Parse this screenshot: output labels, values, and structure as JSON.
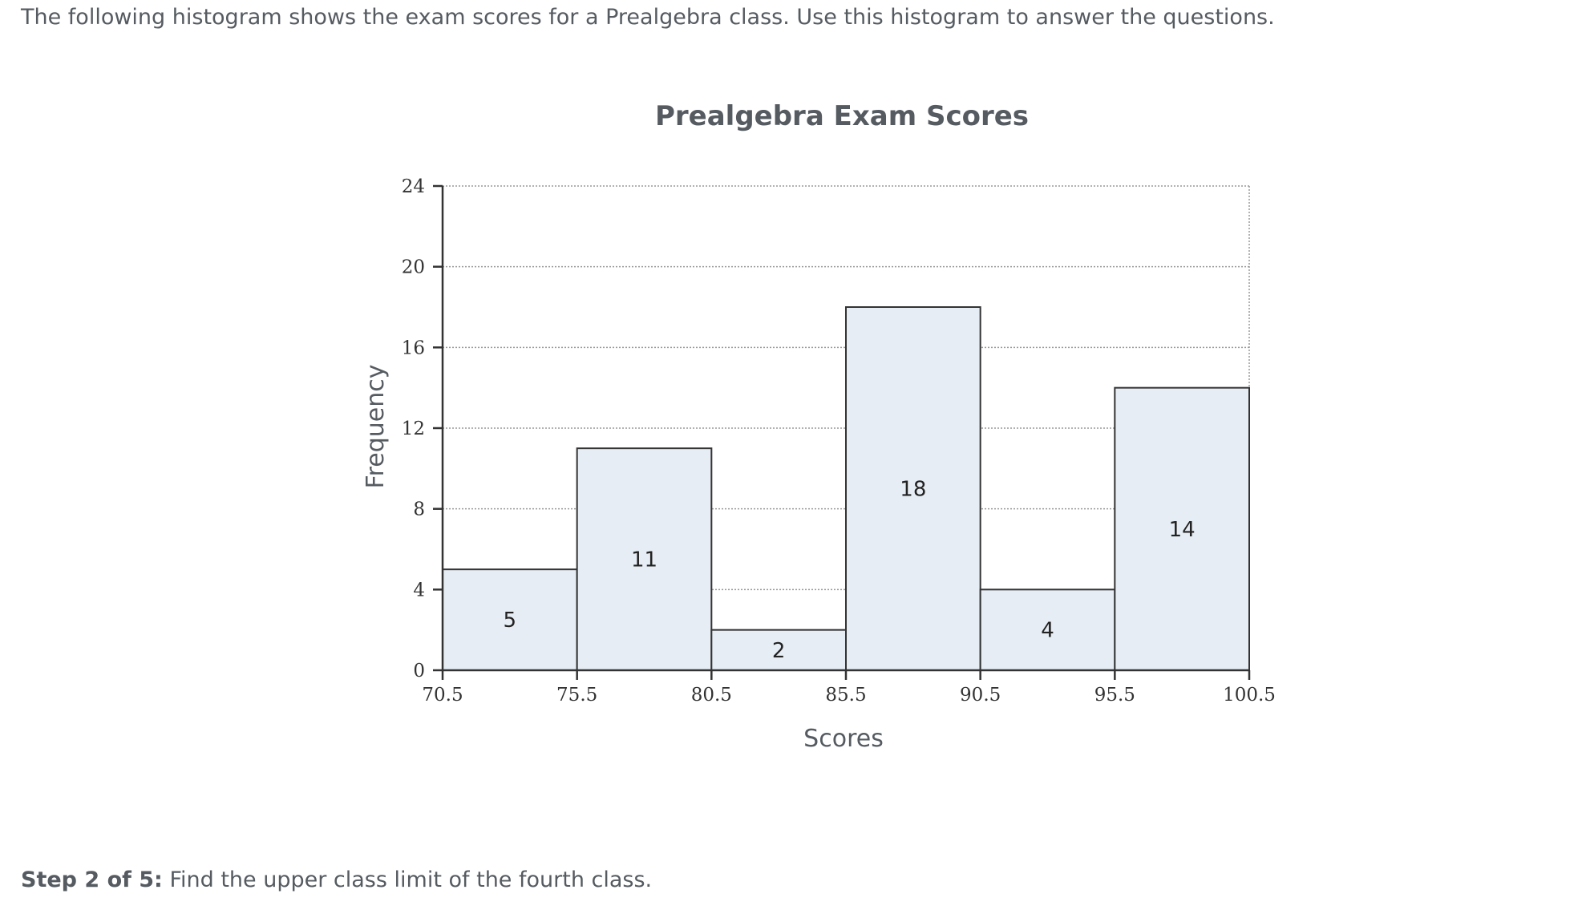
{
  "question": {
    "intro": "The following histogram shows the exam scores for a Prealgebra class. Use this histogram to answer the questions.",
    "step_label": "Step 2 of 5:",
    "step_text": " Find the upper class limit of the fourth class."
  },
  "colors": {
    "bar_fill": "#e6edf4",
    "bar_stroke": "#333333",
    "grid": "#999999",
    "text": "#555b61"
  },
  "chart_data": {
    "type": "bar",
    "title": "Prealgebra Exam Scores",
    "xlabel": "Scores",
    "ylabel": "Frequency",
    "bin_edges": [
      70.5,
      75.5,
      80.5,
      85.5,
      90.5,
      95.5,
      100.5
    ],
    "x_tick_labels": [
      "70.5",
      "75.5",
      "80.5",
      "85.5",
      "90.5",
      "95.5",
      "100.5"
    ],
    "values": [
      5,
      11,
      2,
      18,
      4,
      14
    ],
    "value_labels": [
      "5",
      "11",
      "2",
      "18",
      "4",
      "14"
    ],
    "ylim": [
      0,
      24
    ],
    "y_ticks": [
      0,
      4,
      8,
      12,
      16,
      20,
      24
    ],
    "y_tick_labels": [
      "0",
      "4",
      "8",
      "12",
      "16",
      "20",
      "24"
    ],
    "grid": true,
    "grid_style": "dotted"
  }
}
